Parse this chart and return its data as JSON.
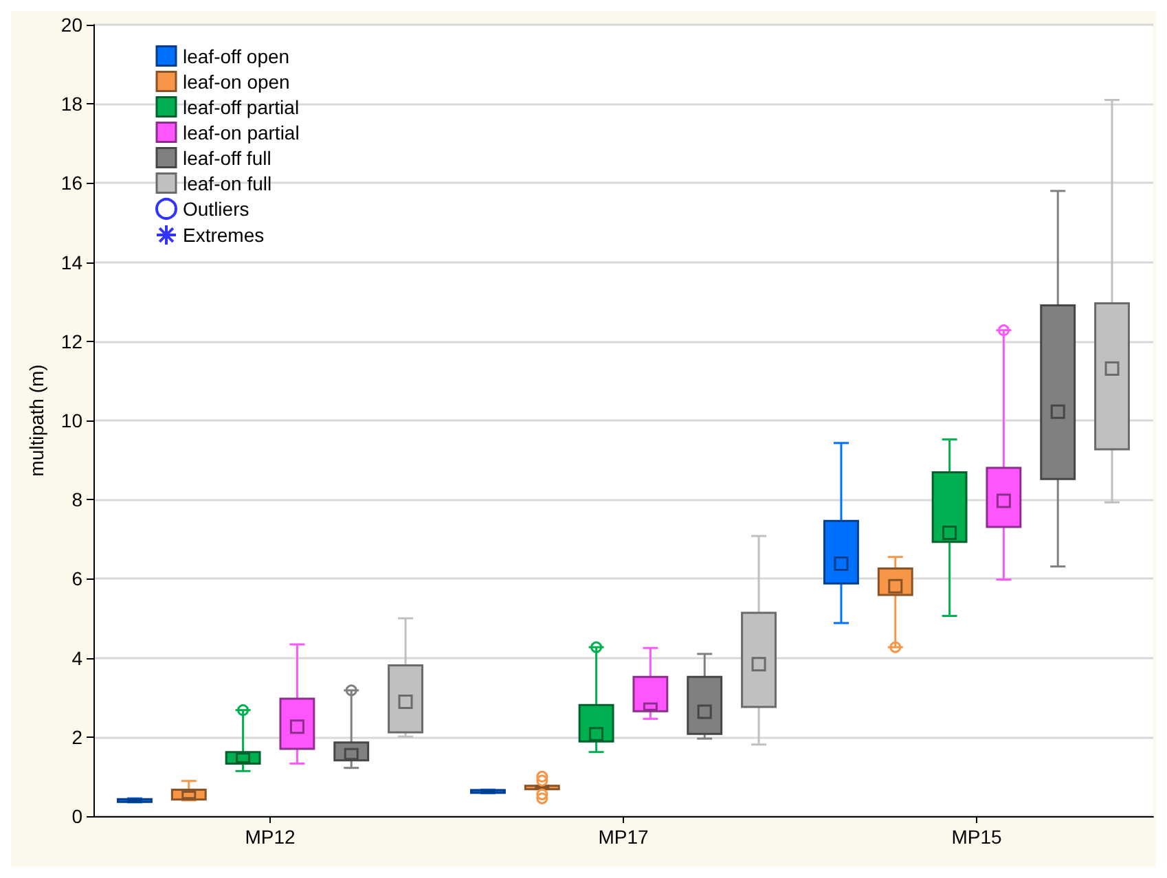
{
  "chart_data": {
    "type": "box",
    "ylabel": "multipath (m)",
    "categories": [
      "MP12",
      "MP17",
      "MP15"
    ],
    "ylim": [
      0,
      20
    ],
    "yticks": [
      0,
      2,
      4,
      6,
      8,
      10,
      12,
      14,
      16,
      18,
      20
    ],
    "grid": "y",
    "legend": "top left",
    "series": [
      {
        "name": "leaf-off open",
        "color": "#0070ff",
        "boxes": [
          {
            "low": 0.35,
            "q1": 0.36,
            "median": 0.39,
            "q3": 0.43,
            "high": 0.45
          },
          {
            "low": 0.58,
            "q1": 0.59,
            "median": 0.62,
            "q3": 0.66,
            "high": 0.67
          },
          {
            "low": 4.88,
            "q1": 5.88,
            "median": 6.38,
            "q3": 7.46,
            "high": 9.43
          }
        ]
      },
      {
        "name": "leaf-on open",
        "color": "#f79646",
        "boxes": [
          {
            "low": 0.4,
            "q1": 0.42,
            "median": 0.46,
            "q3": 0.67,
            "high": 0.89
          },
          {
            "low": 0.68,
            "q1": 0.68,
            "median": 0.72,
            "q3": 0.77,
            "high": 0.77,
            "outliers": [
              1.0,
              0.9,
              0.55,
              0.45
            ]
          },
          {
            "low": 4.27,
            "q1": 5.59,
            "median": 5.81,
            "q3": 6.26,
            "high": 6.55,
            "outliers": [
              4.27
            ]
          }
        ]
      },
      {
        "name": "leaf-off partial",
        "color": "#00b050",
        "boxes": [
          {
            "low": 1.14,
            "q1": 1.33,
            "median": 1.48,
            "q3": 1.62,
            "high": 2.68,
            "outliers": [
              2.68
            ]
          },
          {
            "low": 1.62,
            "q1": 1.89,
            "median": 2.07,
            "q3": 2.81,
            "high": 4.27,
            "outliers": [
              4.27
            ]
          },
          {
            "low": 5.06,
            "q1": 6.93,
            "median": 7.16,
            "q3": 8.69,
            "high": 9.52
          }
        ]
      },
      {
        "name": "leaf-on partial",
        "color": "#ff55ff",
        "boxes": [
          {
            "low": 1.33,
            "q1": 1.7,
            "median": 2.26,
            "q3": 2.97,
            "high": 4.34
          },
          {
            "low": 2.46,
            "q1": 2.65,
            "median": 2.69,
            "q3": 3.52,
            "high": 4.25
          },
          {
            "low": 5.98,
            "q1": 7.31,
            "median": 7.97,
            "q3": 8.8,
            "high": 12.28,
            "outliers": [
              12.28
            ]
          }
        ]
      },
      {
        "name": "leaf-off full",
        "color": "#808080",
        "boxes": [
          {
            "low": 1.22,
            "q1": 1.41,
            "median": 1.54,
            "q3": 1.86,
            "high": 3.18,
            "outliers": [
              3.18
            ]
          },
          {
            "low": 1.96,
            "q1": 2.08,
            "median": 2.64,
            "q3": 3.52,
            "high": 4.1
          },
          {
            "low": 6.31,
            "q1": 8.52,
            "median": 10.22,
            "q3": 12.91,
            "high": 15.8
          }
        ]
      },
      {
        "name": "leaf-on full",
        "color": "#c0c0c0",
        "boxes": [
          {
            "low": 2.01,
            "q1": 2.12,
            "median": 2.89,
            "q3": 3.81,
            "high": 5.0
          },
          {
            "low": 1.81,
            "q1": 2.76,
            "median": 3.84,
            "q3": 5.14,
            "high": 7.08
          },
          {
            "low": 7.93,
            "q1": 9.27,
            "median": 11.31,
            "q3": 12.96,
            "high": 18.1
          }
        ]
      },
      {
        "name": "Outliers",
        "type": "scatter",
        "color": "#0000ff",
        "marker": "circle",
        "values": [
          null,
          null,
          null
        ]
      },
      {
        "name": "Extremes",
        "type": "scatter",
        "color": "#0000ff",
        "marker": "star",
        "values": [
          null,
          null,
          null
        ]
      }
    ]
  }
}
